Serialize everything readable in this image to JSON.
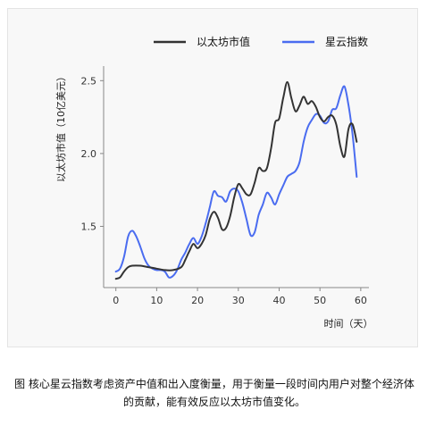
{
  "chart_data": {
    "type": "line",
    "title": "",
    "xlabel": "时间（天）",
    "ylabel": "以太坊市值（10亿美元）",
    "xlim": [
      -3,
      62
    ],
    "ylim": [
      1.08,
      2.6
    ],
    "x_ticks": [
      0,
      10,
      20,
      30,
      40,
      50,
      60
    ],
    "y_ticks": [
      1.5,
      2.0,
      2.5
    ],
    "grid": false,
    "legend_position": "top",
    "series": [
      {
        "name": "以太坊市值",
        "color": "#333333",
        "points": [
          [
            0,
            1.14
          ],
          [
            1,
            1.15
          ],
          [
            2,
            1.19
          ],
          [
            3,
            1.22
          ],
          [
            4,
            1.23
          ],
          [
            6,
            1.23
          ],
          [
            8,
            1.22
          ],
          [
            10,
            1.21
          ],
          [
            12,
            1.2
          ],
          [
            14,
            1.2
          ],
          [
            16,
            1.22
          ],
          [
            17,
            1.27
          ],
          [
            18,
            1.33
          ],
          [
            19,
            1.38
          ],
          [
            20,
            1.35
          ],
          [
            21,
            1.38
          ],
          [
            22,
            1.44
          ],
          [
            23,
            1.55
          ],
          [
            24,
            1.6
          ],
          [
            25,
            1.56
          ],
          [
            26,
            1.48
          ],
          [
            27,
            1.49
          ],
          [
            28,
            1.57
          ],
          [
            29,
            1.7
          ],
          [
            30,
            1.79
          ],
          [
            31,
            1.76
          ],
          [
            32,
            1.72
          ],
          [
            33,
            1.72
          ],
          [
            34,
            1.8
          ],
          [
            35,
            1.9
          ],
          [
            36,
            1.88
          ],
          [
            37,
            1.9
          ],
          [
            38,
            2.03
          ],
          [
            39,
            2.21
          ],
          [
            40,
            2.24
          ],
          [
            41,
            2.38
          ],
          [
            42,
            2.49
          ],
          [
            43,
            2.38
          ],
          [
            44,
            2.29
          ],
          [
            45,
            2.33
          ],
          [
            46,
            2.39
          ],
          [
            47,
            2.34
          ],
          [
            48,
            2.36
          ],
          [
            49,
            2.32
          ],
          [
            50,
            2.25
          ],
          [
            51,
            2.22
          ],
          [
            52,
            2.25
          ],
          [
            53,
            2.26
          ],
          [
            54,
            2.2
          ],
          [
            55,
            2.05
          ],
          [
            56,
            1.98
          ],
          [
            57,
            2.17
          ],
          [
            58,
            2.2
          ],
          [
            59,
            2.08
          ]
        ]
      },
      {
        "name": "星云指数",
        "color": "#4a6cf0",
        "points": [
          [
            0,
            1.19
          ],
          [
            1,
            1.21
          ],
          [
            2,
            1.29
          ],
          [
            3,
            1.43
          ],
          [
            4,
            1.47
          ],
          [
            5,
            1.43
          ],
          [
            6,
            1.36
          ],
          [
            7,
            1.28
          ],
          [
            8,
            1.23
          ],
          [
            9,
            1.21
          ],
          [
            10,
            1.2
          ],
          [
            11,
            1.2
          ],
          [
            12,
            1.19
          ],
          [
            13,
            1.15
          ],
          [
            14,
            1.16
          ],
          [
            15,
            1.2
          ],
          [
            16,
            1.27
          ],
          [
            17,
            1.32
          ],
          [
            18,
            1.38
          ],
          [
            19,
            1.42
          ],
          [
            20,
            1.38
          ],
          [
            21,
            1.43
          ],
          [
            22,
            1.52
          ],
          [
            23,
            1.63
          ],
          [
            24,
            1.74
          ],
          [
            25,
            1.71
          ],
          [
            26,
            1.7
          ],
          [
            27,
            1.67
          ],
          [
            28,
            1.74
          ],
          [
            29,
            1.76
          ],
          [
            30,
            1.74
          ],
          [
            31,
            1.66
          ],
          [
            32,
            1.55
          ],
          [
            33,
            1.44
          ],
          [
            34,
            1.46
          ],
          [
            35,
            1.58
          ],
          [
            36,
            1.65
          ],
          [
            37,
            1.73
          ],
          [
            38,
            1.7
          ],
          [
            39,
            1.65
          ],
          [
            40,
            1.72
          ],
          [
            41,
            1.78
          ],
          [
            42,
            1.84
          ],
          [
            43,
            1.86
          ],
          [
            44,
            1.88
          ],
          [
            45,
            1.94
          ],
          [
            46,
            2.08
          ],
          [
            47,
            2.18
          ],
          [
            48,
            2.23
          ],
          [
            49,
            2.27
          ],
          [
            50,
            2.26
          ],
          [
            51,
            2.21
          ],
          [
            52,
            2.22
          ],
          [
            53,
            2.3
          ],
          [
            54,
            2.31
          ],
          [
            55,
            2.4
          ],
          [
            56,
            2.46
          ],
          [
            57,
            2.33
          ],
          [
            58,
            2.13
          ],
          [
            59,
            1.84
          ]
        ]
      }
    ]
  },
  "caption": "图 核心星云指数考虑资产中值和出入度衡量，用于衡量一段时间内用户对整个经济体的贡献，能有效反应以太坊市值变化。"
}
